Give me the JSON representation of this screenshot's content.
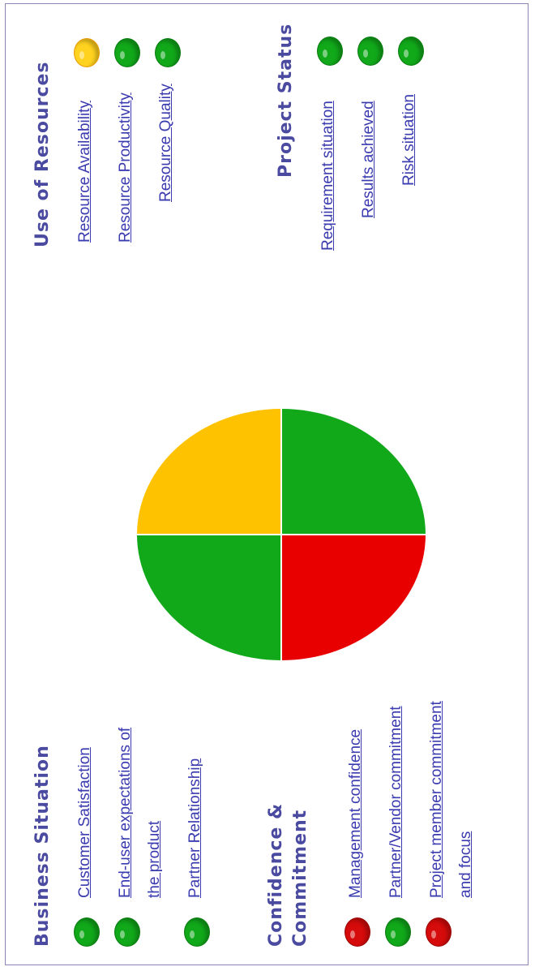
{
  "colors": {
    "green": "#11a81a",
    "yellow": "#ffc200",
    "red": "#e80000",
    "heading": "#4a4aa0",
    "link": "#3b3bb0"
  },
  "business_situation": {
    "title": "Business Situation",
    "items": [
      {
        "label": "Customer Satisfaction",
        "status": "green"
      },
      {
        "label": "End-user expectations of",
        "label2": "the product",
        "status": "green"
      },
      {
        "label": "Partner Relationship",
        "status": "green"
      }
    ]
  },
  "confidence_commitment": {
    "title": "Confidence &",
    "title2": "Commitment",
    "items": [
      {
        "label": "Management confidence",
        "status": "red"
      },
      {
        "label": "Partner/Vendor commitment",
        "status": "green"
      },
      {
        "label": "Project member commitment",
        "label2": "and focus",
        "status": "red"
      }
    ]
  },
  "use_of_resources": {
    "title": "Use of Resources",
    "items": [
      {
        "label": "Resource Availability",
        "status": "yellow"
      },
      {
        "label": "Resource Productivity",
        "status": "green"
      },
      {
        "label": "Resource Quality",
        "status": "green"
      }
    ]
  },
  "project_status": {
    "title": "Project Status",
    "items": [
      {
        "label": "Requirement situation",
        "status": "green"
      },
      {
        "label": "Results achieved",
        "status": "green"
      },
      {
        "label": "Risk situation",
        "status": "green"
      }
    ]
  },
  "pie": {
    "business_situation": "green",
    "use_of_resources": "yellow",
    "confidence_commitment": "red",
    "project_status": "green"
  }
}
